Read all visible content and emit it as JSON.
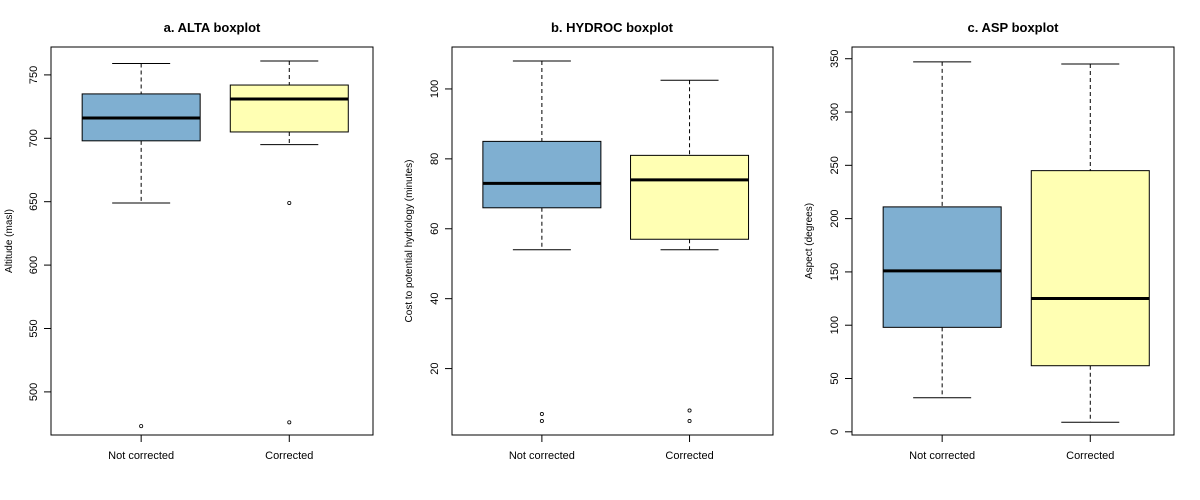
{
  "colors": {
    "not_corrected": "#7FAFD1",
    "corrected": "#FFFFB3"
  },
  "chart_data": [
    {
      "type": "boxplot",
      "title": "a. ALTA boxplot",
      "xlabel": "",
      "ylabel": "Altitude (masl)",
      "ylim": [
        466,
        772
      ],
      "yticks": [
        500,
        550,
        600,
        650,
        700,
        750
      ],
      "categories": [
        "Not corrected",
        "Corrected"
      ],
      "boxes": [
        {
          "min": 649,
          "q1": 698,
          "median": 716,
          "q3": 735,
          "max": 759,
          "outliers": [
            473
          ]
        },
        {
          "min": 695,
          "q1": 705,
          "median": 731,
          "q3": 742,
          "max": 761,
          "outliers": [
            649,
            476
          ]
        }
      ]
    },
    {
      "type": "boxplot",
      "title": "b. HYDROC boxplot",
      "xlabel": "",
      "ylabel": "Cost to potential hydrology (minutes)",
      "ylim": [
        1,
        112
      ],
      "yticks": [
        20,
        40,
        60,
        80,
        100
      ],
      "categories": [
        "Not corrected",
        "Corrected"
      ],
      "boxes": [
        {
          "min": 54,
          "q1": 66,
          "median": 73,
          "q3": 85,
          "max": 108,
          "outliers": [
            7,
            5
          ]
        },
        {
          "min": 54,
          "q1": 57,
          "median": 74,
          "q3": 81,
          "max": 102.5,
          "outliers": [
            8,
            5
          ]
        }
      ]
    },
    {
      "type": "boxplot",
      "title": "c. ASP boxplot",
      "xlabel": "",
      "ylabel": "Aspect (degrees)",
      "ylim": [
        -3,
        361
      ],
      "yticks": [
        0,
        50,
        100,
        150,
        200,
        250,
        300,
        350
      ],
      "categories": [
        "Not corrected",
        "Corrected"
      ],
      "boxes": [
        {
          "min": 32,
          "q1": 98,
          "median": 151,
          "q3": 211,
          "max": 347,
          "outliers": []
        },
        {
          "min": 9,
          "q1": 62,
          "median": 125,
          "q3": 245,
          "max": 345,
          "outliers": []
        }
      ]
    }
  ]
}
